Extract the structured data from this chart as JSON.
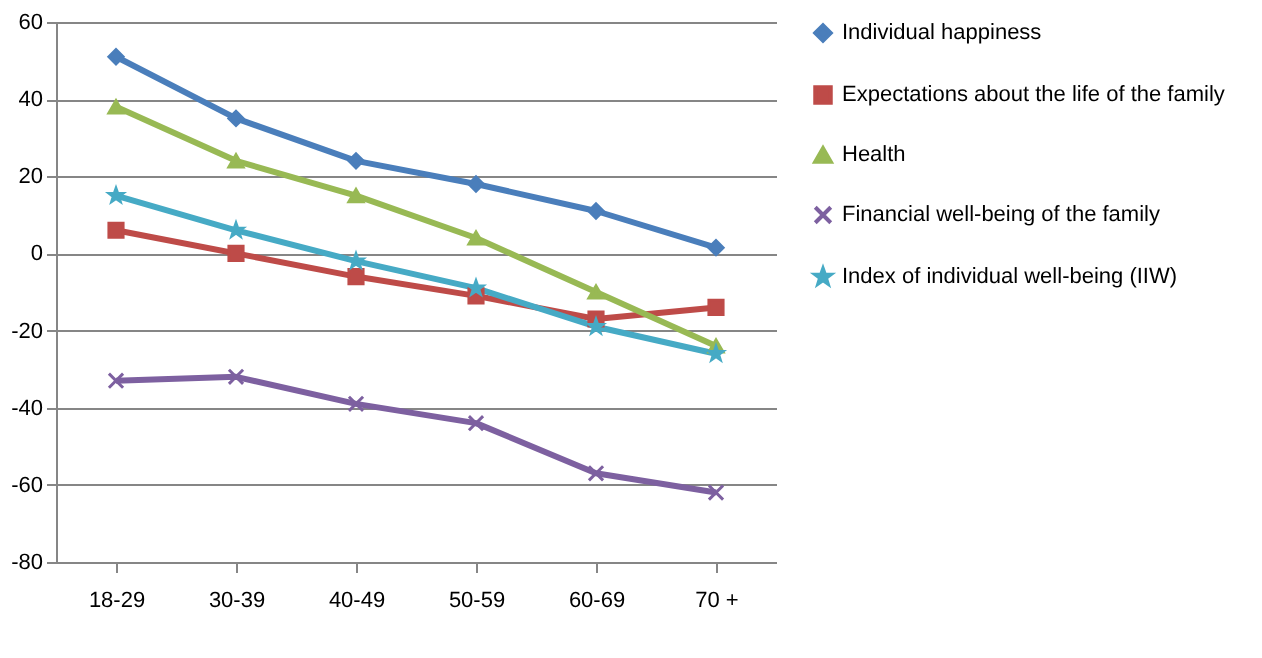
{
  "chart_data": {
    "type": "line",
    "categories": [
      "18-29",
      "30-39",
      "40-49",
      "50-59",
      "60-69",
      "70 +"
    ],
    "series": [
      {
        "name": "Individual happiness",
        "color": "#4a7ebb",
        "marker": "diamond",
        "values": [
          51,
          35,
          24,
          18,
          11,
          1.5
        ]
      },
      {
        "name": "Expectations about the life of the family",
        "color": "#be4b48",
        "marker": "square",
        "values": [
          6,
          0,
          -6,
          -11,
          -17,
          -14
        ]
      },
      {
        "name": "Health",
        "color": "#98b954",
        "marker": "triangle",
        "values": [
          38,
          24,
          15,
          4,
          -10,
          -24
        ]
      },
      {
        "name": "Financial well-being of the family",
        "color": "#7d60a0",
        "marker": "cross",
        "values": [
          -33,
          -32,
          -39,
          -44,
          -57,
          -62
        ]
      },
      {
        "name": "Index of individual well-being (IIW)",
        "color": "#46aac5",
        "marker": "star",
        "values": [
          15,
          6,
          -2,
          -9,
          -19,
          -26
        ]
      }
    ],
    "ylim": [
      -80,
      60
    ],
    "yticks": [
      -80,
      -60,
      -40,
      -20,
      0,
      20,
      40,
      60
    ],
    "grid": "y",
    "legend": "right",
    "line_style": "solid"
  }
}
